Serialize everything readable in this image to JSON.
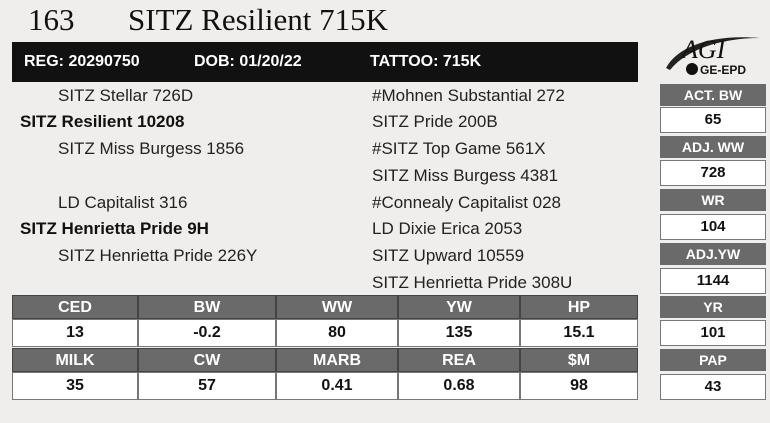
{
  "header": {
    "lot_number": "163",
    "animal_name": "SITZ Resilient 715K",
    "reg": "REG: 20290750",
    "dob": "DOB: 01/20/22",
    "tattoo": "TATTOO: 715K"
  },
  "logo": {
    "brand": "AGI",
    "sub": "GE-EPD"
  },
  "pedigree": {
    "sire_sire": "SITZ Stellar 726D",
    "sire": "SITZ Resilient 10208",
    "sire_dam": "SITZ Miss Burgess 1856",
    "dam_sire": "LD Capitalist 316",
    "dam": "SITZ Henrietta Pride 9H",
    "dam_dam": "SITZ Henrietta Pride 226Y",
    "col2": [
      "#Mohnen Substantial 272",
      "SITZ Pride 200B",
      "#SITZ Top Game 561X",
      "SITZ Miss Burgess 4381",
      "#Connealy Capitalist 028",
      "LD Dixie Erica 2053",
      "SITZ Upward 10559",
      "SITZ Henrietta Pride 308U"
    ]
  },
  "side_stats": [
    {
      "label": "ACT. BW",
      "value": "65"
    },
    {
      "label": "ADJ. WW",
      "value": "728"
    },
    {
      "label": "WR",
      "value": "104"
    },
    {
      "label": "ADJ.YW",
      "value": "1144"
    },
    {
      "label": "YR",
      "value": "101"
    },
    {
      "label": "PAP",
      "value": "43"
    }
  ],
  "epd_row1": [
    {
      "label": "CED",
      "value": "13"
    },
    {
      "label": "BW",
      "value": "-0.2"
    },
    {
      "label": "WW",
      "value": "80"
    },
    {
      "label": "YW",
      "value": "135"
    },
    {
      "label": "HP",
      "value": "15.1"
    }
  ],
  "epd_row2": [
    {
      "label": "MILK",
      "value": "35"
    },
    {
      "label": "CW",
      "value": "57"
    },
    {
      "label": "MARB",
      "value": "0.41"
    },
    {
      "label": "REA",
      "value": "0.68"
    },
    {
      "label": "$M",
      "value": "98"
    }
  ]
}
